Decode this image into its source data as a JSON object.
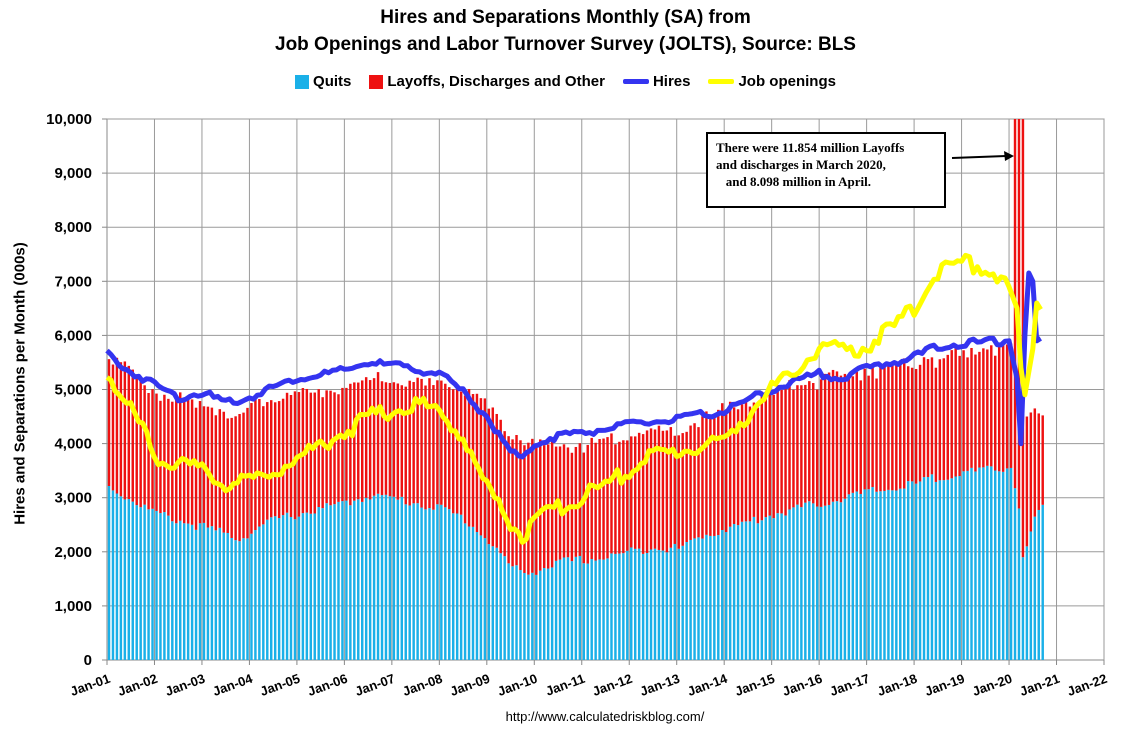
{
  "chart_data": {
    "type": "bar",
    "title_lines": [
      "Hires and Separations Monthly (SA) from",
      "Job Openings and Labor Turnover Survey (JOLTS), Source: BLS"
    ],
    "ylabel": "Hires and Separations per Month (000s)",
    "ylim": [
      0,
      10000
    ],
    "yticks": [
      "0",
      "1,000",
      "2,000",
      "3,000",
      "4,000",
      "5,000",
      "6,000",
      "7,000",
      "8,000",
      "9,000",
      "10,000"
    ],
    "xticks": [
      "Jan-01",
      "Jan-02",
      "Jan-03",
      "Jan-04",
      "Jan-05",
      "Jan-06",
      "Jan-07",
      "Jan-08",
      "Jan-09",
      "Jan-10",
      "Jan-11",
      "Jan-12",
      "Jan-13",
      "Jan-14",
      "Jan-15",
      "Jan-16",
      "Jan-17",
      "Jan-18",
      "Jan-19",
      "Jan-20",
      "Jan-21",
      "Jan-22"
    ],
    "x_range_years": [
      2001,
      2022
    ],
    "grid": true,
    "legend_position": "top",
    "colors": {
      "quits": "#1ab0e8",
      "layoffs": "#ee1111",
      "hires": "#3434f0",
      "openings": "#ffff00"
    },
    "series": [
      {
        "name": "Quits",
        "kind": "stacked-bar",
        "keyframes": [
          [
            2001.0,
            3200
          ],
          [
            2002.0,
            2700
          ],
          [
            2003.0,
            2450
          ],
          [
            2003.75,
            2250
          ],
          [
            2004.5,
            2600
          ],
          [
            2006.0,
            2900
          ],
          [
            2006.5,
            3050
          ],
          [
            2007.5,
            2900
          ],
          [
            2008.0,
            2800
          ],
          [
            2008.5,
            2600
          ],
          [
            2009.0,
            2200
          ],
          [
            2009.5,
            1700
          ],
          [
            2009.8,
            1600
          ],
          [
            2010.5,
            1800
          ],
          [
            2011.5,
            1900
          ],
          [
            2012.5,
            2100
          ],
          [
            2013.0,
            2050
          ],
          [
            2013.5,
            2300
          ],
          [
            2014.5,
            2550
          ],
          [
            2015.0,
            2700
          ],
          [
            2016.0,
            2900
          ],
          [
            2017.0,
            3100
          ],
          [
            2018.0,
            3250
          ],
          [
            2018.5,
            3400
          ],
          [
            2019.5,
            3500
          ],
          [
            2020.0,
            3550
          ],
          [
            2020.167,
            2800
          ],
          [
            2020.25,
            1900
          ],
          [
            2020.333,
            2100
          ],
          [
            2020.5,
            2650
          ],
          [
            2020.667,
            2800
          ]
        ]
      },
      {
        "name": "Layoffs, Discharges and Other",
        "kind": "stacked-bar",
        "keyframes": [
          [
            2001.0,
            2500
          ],
          [
            2002.0,
            2200
          ],
          [
            2003.0,
            2250
          ],
          [
            2004.0,
            2300
          ],
          [
            2005.0,
            2200
          ],
          [
            2006.0,
            2100
          ],
          [
            2007.0,
            2150
          ],
          [
            2008.0,
            2300
          ],
          [
            2009.0,
            2500
          ],
          [
            2009.5,
            2450
          ],
          [
            2010.0,
            2300
          ],
          [
            2011.0,
            2100
          ],
          [
            2012.0,
            2200
          ],
          [
            2013.0,
            2150
          ],
          [
            2014.0,
            2200
          ],
          [
            2015.0,
            2250
          ],
          [
            2016.0,
            2300
          ],
          [
            2017.0,
            2250
          ],
          [
            2018.0,
            2250
          ],
          [
            2019.0,
            2200
          ],
          [
            2020.0,
            2300
          ],
          [
            2020.167,
            11854
          ],
          [
            2020.25,
            8098
          ],
          [
            2020.333,
            2400
          ],
          [
            2020.5,
            2000
          ],
          [
            2020.667,
            1800
          ]
        ]
      },
      {
        "name": "Hires",
        "kind": "line",
        "keyframes": [
          [
            2001.0,
            5700
          ],
          [
            2001.25,
            5450
          ],
          [
            2002.0,
            5100
          ],
          [
            2002.5,
            4850
          ],
          [
            2003.0,
            4950
          ],
          [
            2003.5,
            4750
          ],
          [
            2004.0,
            4850
          ],
          [
            2004.5,
            5050
          ],
          [
            2005.0,
            5200
          ],
          [
            2006.0,
            5350
          ],
          [
            2006.5,
            5500
          ],
          [
            2007.0,
            5450
          ],
          [
            2008.0,
            5300
          ],
          [
            2008.5,
            4950
          ],
          [
            2009.0,
            4500
          ],
          [
            2009.5,
            3850
          ],
          [
            2009.75,
            3700
          ],
          [
            2010.0,
            4000
          ],
          [
            2010.5,
            4150
          ],
          [
            2011.0,
            4200
          ],
          [
            2012.0,
            4350
          ],
          [
            2013.0,
            4450
          ],
          [
            2014.0,
            4600
          ],
          [
            2014.5,
            4800
          ],
          [
            2015.0,
            5000
          ],
          [
            2016.0,
            5300
          ],
          [
            2016.5,
            5200
          ],
          [
            2017.0,
            5400
          ],
          [
            2018.0,
            5600
          ],
          [
            2018.5,
            5800
          ],
          [
            2019.0,
            5850
          ],
          [
            2020.0,
            5900
          ],
          [
            2020.167,
            5200
          ],
          [
            2020.25,
            4000
          ],
          [
            2020.333,
            6000
          ],
          [
            2020.42,
            7200
          ],
          [
            2020.5,
            7000
          ],
          [
            2020.583,
            5900
          ],
          [
            2020.667,
            5900
          ]
        ]
      },
      {
        "name": "Job openings",
        "kind": "line",
        "keyframes": [
          [
            2001.0,
            5350
          ],
          [
            2001.25,
            4900
          ],
          [
            2001.75,
            4300
          ],
          [
            2002.0,
            3800
          ],
          [
            2002.5,
            3600
          ],
          [
            2003.0,
            3500
          ],
          [
            2003.5,
            3250
          ],
          [
            2004.0,
            3300
          ],
          [
            2004.5,
            3500
          ],
          [
            2005.0,
            3700
          ],
          [
            2005.5,
            4000
          ],
          [
            2006.0,
            4200
          ],
          [
            2006.5,
            4500
          ],
          [
            2007.0,
            4600
          ],
          [
            2007.5,
            4750
          ],
          [
            2008.0,
            4600
          ],
          [
            2008.5,
            4100
          ],
          [
            2009.0,
            3200
          ],
          [
            2009.5,
            2550
          ],
          [
            2009.75,
            2300
          ],
          [
            2010.0,
            2550
          ],
          [
            2010.5,
            2800
          ],
          [
            2011.0,
            3000
          ],
          [
            2012.0,
            3500
          ],
          [
            2012.5,
            3800
          ],
          [
            2013.0,
            3850
          ],
          [
            2014.0,
            4050
          ],
          [
            2014.5,
            4550
          ],
          [
            2015.0,
            5000
          ],
          [
            2015.5,
            5300
          ],
          [
            2016.0,
            5800
          ],
          [
            2016.5,
            5700
          ],
          [
            2017.0,
            5800
          ],
          [
            2017.5,
            6100
          ],
          [
            2018.0,
            6500
          ],
          [
            2018.5,
            7200
          ],
          [
            2019.0,
            7350
          ],
          [
            2019.5,
            7250
          ],
          [
            2019.9,
            7000
          ],
          [
            2020.0,
            6900
          ],
          [
            2020.167,
            6500
          ],
          [
            2020.25,
            5400
          ],
          [
            2020.333,
            4900
          ],
          [
            2020.5,
            5750
          ],
          [
            2020.583,
            6600
          ],
          [
            2020.667,
            6500
          ]
        ]
      }
    ],
    "annotation_lines": [
      "There were 11.854 million Layoffs",
      "and discharges in March 2020,",
      "   and 8.098 million in April."
    ],
    "source": "http://www.calculatedriskblog.com/"
  }
}
